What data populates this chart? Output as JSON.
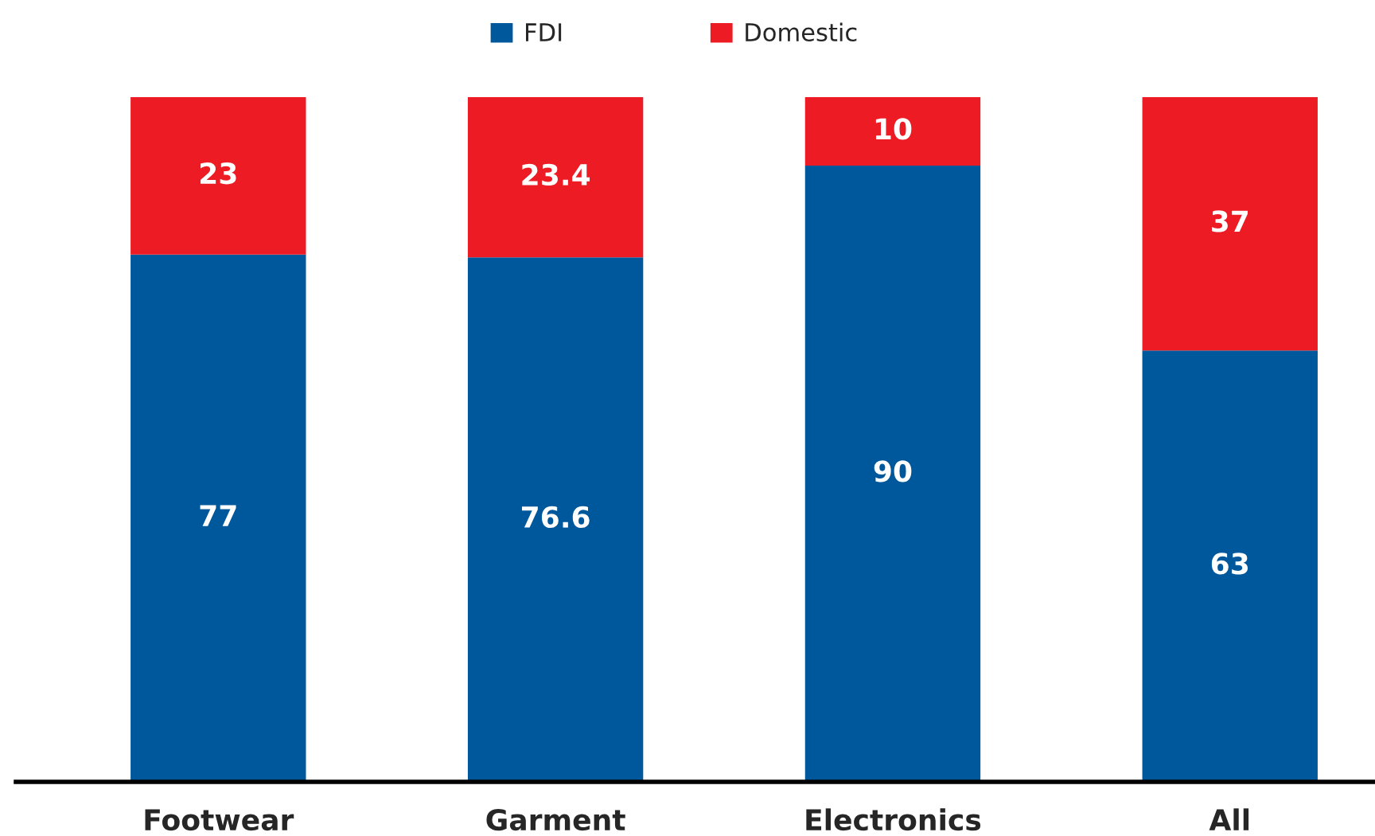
{
  "chart_data": {
    "type": "bar",
    "stacked": true,
    "categories": [
      "Footwear",
      "Garment",
      "Electronics",
      "All"
    ],
    "series": [
      {
        "name": "FDI",
        "color": "#00589c",
        "values": [
          77,
          76.6,
          90,
          63
        ]
      },
      {
        "name": "Domestic",
        "color": "#ed1c24",
        "values": [
          23,
          23.4,
          10,
          37
        ]
      }
    ],
    "data_labels": true,
    "legend": "top"
  }
}
